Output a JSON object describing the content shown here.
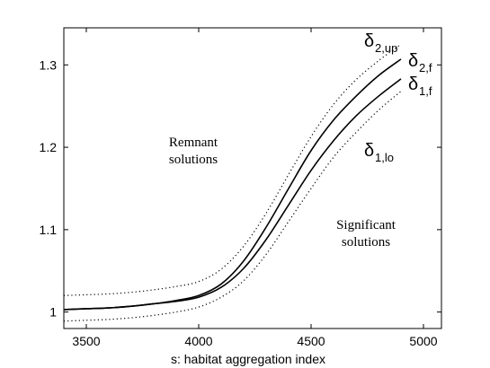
{
  "chart_data": {
    "type": "line",
    "title": "",
    "xlabel": "s: habitat aggregation index",
    "ylabel": "",
    "xlim": [
      3400,
      5080
    ],
    "ylim": [
      0.98,
      1.345
    ],
    "xticks": [
      3500,
      4000,
      4500,
      5000
    ],
    "yticks": [
      1,
      1.1,
      1.2,
      1.3
    ],
    "xtick_labels": [
      "3500",
      "4000",
      "4500",
      "5000"
    ],
    "ytick_labels": [
      "1",
      "1.1",
      "1.2",
      "1.3"
    ],
    "grid": false,
    "legend": "none",
    "series": [
      {
        "key": "d2up",
        "style": "dotted",
        "label_main": "δ",
        "label_sub": "2,up",
        "x": [
          3400,
          3500,
          3600,
          3700,
          3800,
          3900,
          4000,
          4100,
          4200,
          4300,
          4400,
          4500,
          4600,
          4700,
          4800,
          4900
        ],
        "y": [
          1.02,
          1.021,
          1.022,
          1.024,
          1.027,
          1.031,
          1.037,
          1.052,
          1.08,
          1.12,
          1.167,
          1.213,
          1.252,
          1.282,
          1.305,
          1.325
        ]
      },
      {
        "key": "d2f",
        "style": "solid",
        "label_main": "δ",
        "label_sub": "2,f",
        "x": [
          3400,
          3500,
          3600,
          3700,
          3800,
          3900,
          4000,
          4100,
          4200,
          4300,
          4400,
          4500,
          4600,
          4700,
          4800,
          4900
        ],
        "y": [
          1.003,
          1.004,
          1.005,
          1.007,
          1.01,
          1.014,
          1.02,
          1.034,
          1.062,
          1.103,
          1.15,
          1.196,
          1.233,
          1.262,
          1.287,
          1.307
        ]
      },
      {
        "key": "d1f",
        "style": "solid",
        "label_main": "δ",
        "label_sub": "1,f",
        "x": [
          3400,
          3500,
          3600,
          3700,
          3800,
          3900,
          4000,
          4100,
          4200,
          4300,
          4400,
          4500,
          4600,
          4700,
          4800,
          4900
        ],
        "y": [
          1.003,
          1.004,
          1.005,
          1.007,
          1.01,
          1.013,
          1.018,
          1.03,
          1.053,
          1.088,
          1.13,
          1.172,
          1.208,
          1.238,
          1.262,
          1.283
        ]
      },
      {
        "key": "d1lo",
        "style": "dotted",
        "label_main": "δ",
        "label_sub": "1,lo",
        "x": [
          3400,
          3500,
          3600,
          3700,
          3800,
          3900,
          4000,
          4100,
          4200,
          4300,
          4400,
          4500,
          4600,
          4700,
          4800,
          4900
        ],
        "y": [
          0.989,
          0.99,
          0.991,
          0.993,
          0.996,
          1.0,
          1.006,
          1.018,
          1.038,
          1.07,
          1.11,
          1.15,
          1.188,
          1.218,
          1.245,
          1.268
        ]
      }
    ],
    "annotations": [
      {
        "line1": "Remnant",
        "line2": "solutions"
      },
      {
        "line1": "Significant",
        "line2": "solutions"
      }
    ]
  }
}
